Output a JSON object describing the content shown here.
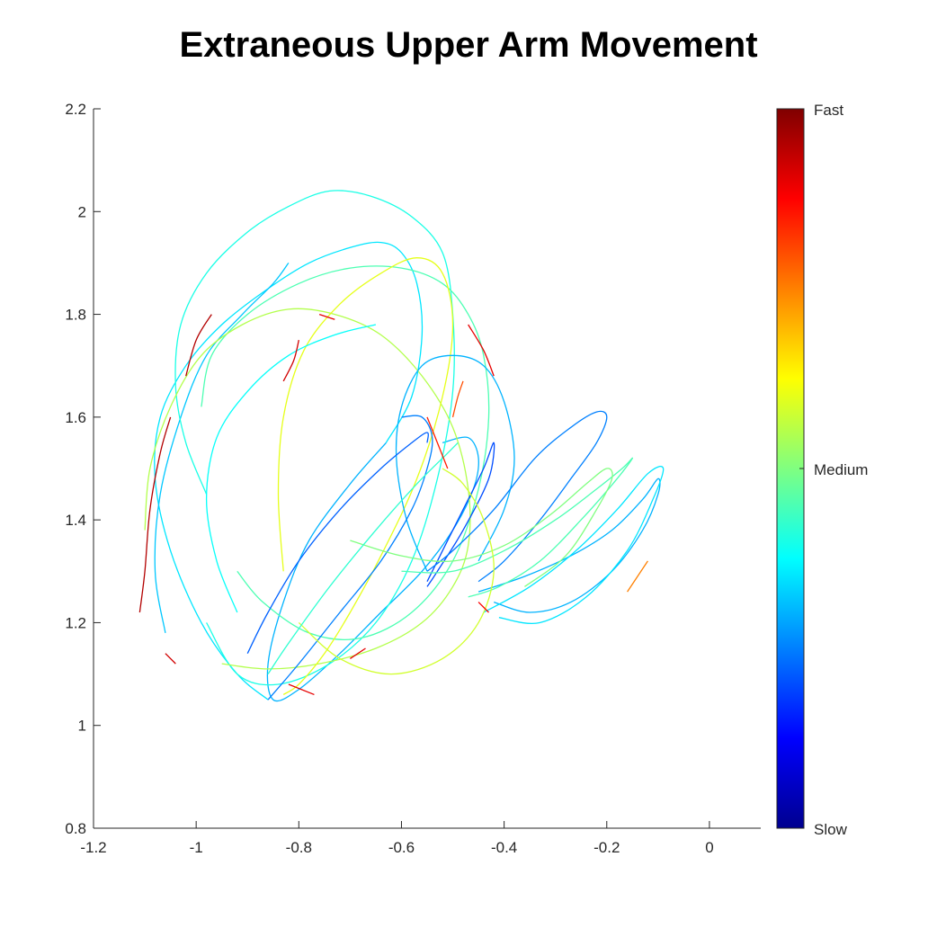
{
  "chart_data": {
    "type": "line",
    "title": "Extraneous Upper Arm Movement",
    "xlabel": "",
    "ylabel": "",
    "xlim": [
      -1.2,
      0.1
    ],
    "ylim": [
      0.8,
      2.2
    ],
    "xticks": [
      "-1.2",
      "-1",
      "-0.8",
      "-0.6",
      "-0.4",
      "-0.2",
      "0"
    ],
    "yticks": [
      "0.8",
      "1",
      "1.2",
      "1.4",
      "1.6",
      "1.8",
      "2",
      "2.2"
    ],
    "grid": false,
    "colorbar": {
      "labels": [
        "Fast",
        "Medium",
        "Slow"
      ],
      "colormap": "jet",
      "colors": [
        "#00008f",
        "#0000ff",
        "#0080ff",
        "#00ffff",
        "#80ff80",
        "#ffff00",
        "#ff8000",
        "#ff0000",
        "#800000"
      ]
    },
    "series": [
      {
        "speed": 0.35,
        "x": [
          -0.86,
          -0.92,
          -0.99,
          -1.05,
          -1.08,
          -1.07,
          -1.02,
          -0.95,
          -0.86,
          -0.78,
          -0.7,
          -0.64,
          -0.6,
          -0.57,
          -0.56,
          -0.58,
          -0.63
        ],
        "y": [
          1.05,
          1.1,
          1.2,
          1.34,
          1.48,
          1.6,
          1.7,
          1.78,
          1.85,
          1.9,
          1.93,
          1.94,
          1.92,
          1.86,
          1.76,
          1.64,
          1.55
        ]
      },
      {
        "speed": 0.3,
        "x": [
          -0.63,
          -0.7,
          -0.78,
          -0.83,
          -0.86,
          -0.85,
          -0.8,
          -0.72,
          -0.64,
          -0.56,
          -0.5,
          -0.46,
          -0.45,
          -0.47,
          -0.52
        ],
        "y": [
          1.55,
          1.47,
          1.36,
          1.24,
          1.12,
          1.05,
          1.07,
          1.14,
          1.22,
          1.3,
          1.38,
          1.46,
          1.52,
          1.56,
          1.55
        ]
      },
      {
        "speed": 0.32,
        "x": [
          -1.06,
          -1.08,
          -1.07,
          -1.03,
          -0.98,
          -0.91,
          -0.85,
          -0.82
        ],
        "y": [
          1.18,
          1.3,
          1.45,
          1.6,
          1.72,
          1.8,
          1.86,
          1.9
        ]
      },
      {
        "speed": 0.4,
        "x": [
          -0.98,
          -1.02,
          -1.04,
          -1.03,
          -0.98,
          -0.9,
          -0.82,
          -0.74,
          -0.66,
          -0.58,
          -0.52,
          -0.5,
          -0.5,
          -0.53,
          -0.58,
          -0.65,
          -0.74,
          -0.84,
          -0.92,
          -0.98
        ],
        "y": [
          1.45,
          1.55,
          1.66,
          1.78,
          1.88,
          1.96,
          2.01,
          2.04,
          2.03,
          1.99,
          1.92,
          1.8,
          1.65,
          1.48,
          1.32,
          1.2,
          1.12,
          1.08,
          1.1,
          1.2
        ]
      },
      {
        "speed": 0.45,
        "x": [
          -0.99,
          -0.97,
          -0.9,
          -0.8,
          -0.7,
          -0.6,
          -0.52,
          -0.47,
          -0.44,
          -0.43,
          -0.45,
          -0.5,
          -0.58,
          -0.68,
          -0.78,
          -0.87,
          -0.92
        ],
        "y": [
          1.62,
          1.72,
          1.8,
          1.86,
          1.89,
          1.89,
          1.86,
          1.8,
          1.72,
          1.6,
          1.46,
          1.32,
          1.22,
          1.17,
          1.18,
          1.24,
          1.3
        ]
      },
      {
        "speed": 0.55,
        "x": [
          -1.1,
          -1.09,
          -1.05,
          -0.99,
          -0.91,
          -0.82,
          -0.73,
          -0.64,
          -0.56,
          -0.5,
          -0.47,
          -0.47,
          -0.5,
          -0.56,
          -0.65,
          -0.76,
          -0.86,
          -0.95
        ],
        "y": [
          1.38,
          1.5,
          1.62,
          1.72,
          1.78,
          1.81,
          1.8,
          1.76,
          1.68,
          1.58,
          1.46,
          1.35,
          1.27,
          1.2,
          1.15,
          1.12,
          1.11,
          1.12
        ]
      },
      {
        "speed": 0.6,
        "x": [
          -0.83,
          -0.84,
          -0.83,
          -0.79,
          -0.72,
          -0.64,
          -0.57,
          -0.52,
          -0.5,
          -0.52,
          -0.57,
          -0.64,
          -0.7,
          -0.75,
          -0.8,
          -0.83
        ],
        "y": [
          1.3,
          1.45,
          1.6,
          1.73,
          1.82,
          1.88,
          1.91,
          1.88,
          1.78,
          1.64,
          1.48,
          1.33,
          1.22,
          1.14,
          1.08,
          1.06
        ]
      },
      {
        "speed": 0.3,
        "x": [
          -0.55,
          -0.59,
          -0.61,
          -0.6,
          -0.56,
          -0.5,
          -0.44,
          -0.4,
          -0.38,
          -0.4,
          -0.45
        ],
        "y": [
          1.3,
          1.4,
          1.52,
          1.62,
          1.7,
          1.72,
          1.7,
          1.63,
          1.52,
          1.42,
          1.32
        ]
      },
      {
        "speed": 0.25,
        "x": [
          -0.86,
          -0.8,
          -0.72,
          -0.64,
          -0.58,
          -0.55,
          -0.54,
          -0.56,
          -0.6
        ],
        "y": [
          1.05,
          1.12,
          1.22,
          1.32,
          1.42,
          1.5,
          1.56,
          1.6,
          1.6
        ]
      },
      {
        "speed": 0.2,
        "x": [
          -0.55,
          -0.52,
          -0.48,
          -0.44,
          -0.42,
          -0.43,
          -0.48,
          -0.53,
          -0.55
        ],
        "y": [
          1.28,
          1.34,
          1.42,
          1.5,
          1.55,
          1.48,
          1.38,
          1.3,
          1.27
        ]
      },
      {
        "speed": 0.25,
        "x": [
          -0.55,
          -0.5,
          -0.42,
          -0.34,
          -0.27,
          -0.22,
          -0.2,
          -0.22,
          -0.27,
          -0.33,
          -0.4,
          -0.45
        ],
        "y": [
          1.3,
          1.34,
          1.42,
          1.52,
          1.58,
          1.61,
          1.6,
          1.55,
          1.48,
          1.4,
          1.32,
          1.28
        ]
      },
      {
        "speed": 0.3,
        "x": [
          -0.45,
          -0.36,
          -0.27,
          -0.19,
          -0.13,
          -0.1,
          -0.1,
          -0.13,
          -0.19,
          -0.27,
          -0.35,
          -0.42
        ],
        "y": [
          1.26,
          1.29,
          1.33,
          1.38,
          1.44,
          1.48,
          1.45,
          1.38,
          1.3,
          1.24,
          1.22,
          1.24
        ]
      },
      {
        "speed": 0.35,
        "x": [
          -0.44,
          -0.35,
          -0.26,
          -0.18,
          -0.12,
          -0.09,
          -0.11,
          -0.16,
          -0.24,
          -0.33,
          -0.41
        ],
        "y": [
          1.22,
          1.27,
          1.34,
          1.42,
          1.49,
          1.5,
          1.44,
          1.34,
          1.25,
          1.2,
          1.21
        ]
      },
      {
        "speed": 0.45,
        "x": [
          -0.6,
          -0.5,
          -0.4,
          -0.3,
          -0.22,
          -0.17,
          -0.15,
          -0.18,
          -0.25,
          -0.33,
          -0.41,
          -0.47
        ],
        "y": [
          1.3,
          1.3,
          1.34,
          1.4,
          1.46,
          1.5,
          1.52,
          1.48,
          1.4,
          1.32,
          1.27,
          1.25
        ]
      },
      {
        "speed": 0.5,
        "x": [
          -0.7,
          -0.6,
          -0.5,
          -0.4,
          -0.31,
          -0.24,
          -0.2,
          -0.19,
          -0.22,
          -0.28,
          -0.36
        ],
        "y": [
          1.36,
          1.33,
          1.32,
          1.35,
          1.41,
          1.47,
          1.5,
          1.48,
          1.42,
          1.33,
          1.27
        ]
      },
      {
        "speed": 0.58,
        "x": [
          -0.8,
          -0.72,
          -0.62,
          -0.52,
          -0.45,
          -0.42,
          -0.44,
          -0.48,
          -0.52
        ],
        "y": [
          1.2,
          1.13,
          1.1,
          1.13,
          1.2,
          1.3,
          1.4,
          1.47,
          1.5
        ]
      },
      {
        "speed": 0.42,
        "x": [
          -0.86,
          -0.82,
          -0.74,
          -0.65,
          -0.57,
          -0.51,
          -0.49
        ],
        "y": [
          1.1,
          1.16,
          1.27,
          1.38,
          1.47,
          1.53,
          1.55
        ]
      },
      {
        "speed": 0.22,
        "x": [
          -0.9,
          -0.86,
          -0.8,
          -0.72,
          -0.64,
          -0.58,
          -0.55,
          -0.55
        ],
        "y": [
          1.14,
          1.22,
          1.32,
          1.42,
          1.5,
          1.55,
          1.57,
          1.55
        ]
      },
      {
        "speed": 0.38,
        "x": [
          -0.92,
          -0.96,
          -0.98,
          -0.96,
          -0.9,
          -0.82,
          -0.73,
          -0.65
        ],
        "y": [
          1.22,
          1.32,
          1.44,
          1.56,
          1.65,
          1.72,
          1.76,
          1.78
        ]
      },
      {
        "speed": 0.95,
        "x": [
          -1.11,
          -1.1,
          -1.09,
          -1.07,
          -1.05
        ],
        "y": [
          1.22,
          1.3,
          1.42,
          1.53,
          1.6
        ]
      },
      {
        "speed": 0.95,
        "x": [
          -1.02,
          -1.0,
          -0.97
        ],
        "y": [
          1.68,
          1.75,
          1.8
        ]
      },
      {
        "speed": 0.92,
        "x": [
          -0.83,
          -0.81,
          -0.8
        ],
        "y": [
          1.67,
          1.71,
          1.75
        ]
      },
      {
        "speed": 0.9,
        "x": [
          -0.76,
          -0.73
        ],
        "y": [
          1.8,
          1.79
        ]
      },
      {
        "speed": 0.9,
        "x": [
          -0.47,
          -0.44,
          -0.42
        ],
        "y": [
          1.78,
          1.73,
          1.68
        ]
      },
      {
        "speed": 0.85,
        "x": [
          -0.55,
          -0.53,
          -0.51
        ],
        "y": [
          1.6,
          1.55,
          1.5
        ]
      },
      {
        "speed": 0.9,
        "x": [
          -0.82,
          -0.77
        ],
        "y": [
          1.08,
          1.06
        ]
      },
      {
        "speed": 0.9,
        "x": [
          -0.7,
          -0.67
        ],
        "y": [
          1.13,
          1.15
        ]
      },
      {
        "speed": 0.88,
        "x": [
          -0.45,
          -0.43
        ],
        "y": [
          1.24,
          1.22
        ]
      },
      {
        "speed": 0.75,
        "x": [
          -0.16,
          -0.14,
          -0.12
        ],
        "y": [
          1.26,
          1.29,
          1.32
        ]
      },
      {
        "speed": 0.8,
        "x": [
          -0.5,
          -0.49,
          -0.48
        ],
        "y": [
          1.6,
          1.64,
          1.67
        ]
      },
      {
        "speed": 0.92,
        "x": [
          -1.06,
          -1.04
        ],
        "y": [
          1.14,
          1.12
        ]
      }
    ]
  }
}
